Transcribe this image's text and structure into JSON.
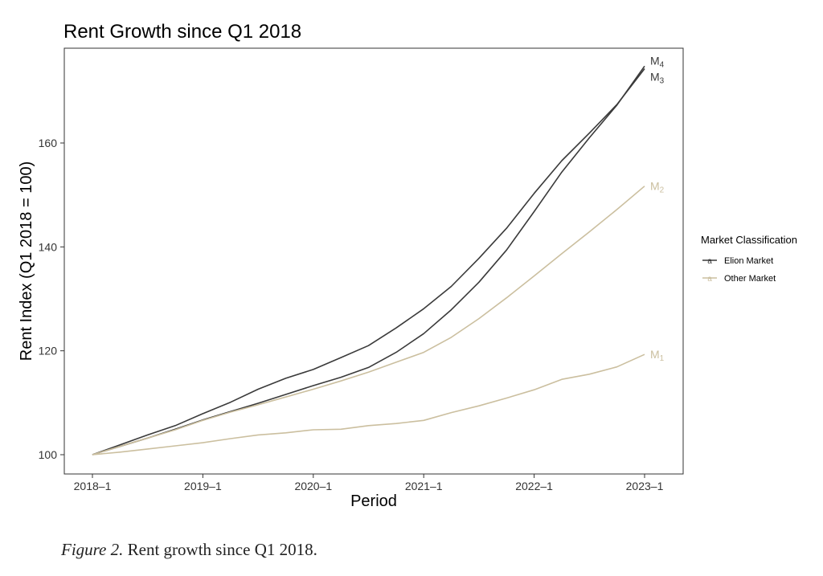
{
  "chart_data": {
    "type": "line",
    "title": "Rent Growth since Q1 2018",
    "xlabel": "Period",
    "ylabel": "Rent Index (Q1 2018 = 100)",
    "x_ticks": [
      "2018–1",
      "2019–1",
      "2020–1",
      "2021–1",
      "2022–1",
      "2023–1"
    ],
    "xlim": [
      0,
      20
    ],
    "ylim": [
      97,
      178
    ],
    "y_ticks": [
      100,
      120,
      140,
      160
    ],
    "grid": false,
    "legend": {
      "title": "Market Classification",
      "placement": "right",
      "entries": [
        {
          "label": "Elion Market",
          "color": "#3a3a3a",
          "key": "a"
        },
        {
          "label": "Other Market",
          "color": "#cbbf9f",
          "key": "a"
        }
      ]
    },
    "series": [
      {
        "label_main": "M",
        "label_sub": "4",
        "class": "Elion Market",
        "color": "#3a3a3a",
        "values": [
          100,
          101.9,
          103.8,
          105.6,
          107.9,
          110.1,
          112.6,
          114.7,
          116.4,
          118.7,
          121,
          124.4,
          128.1,
          132.4,
          137.8,
          143.6,
          150.3,
          156.6,
          161.9,
          167.4,
          174.3
        ]
      },
      {
        "label_main": "M",
        "label_sub": "3",
        "class": "Elion Market",
        "color": "#3a3a3a",
        "values": [
          100,
          101.6,
          103.2,
          104.9,
          106.7,
          108.3,
          109.9,
          111.6,
          113.3,
          114.9,
          116.8,
          119.7,
          123.3,
          127.9,
          133.2,
          139.4,
          146.8,
          154.4,
          161,
          167.3,
          174.8
        ]
      },
      {
        "label_main": "M",
        "label_sub": "2",
        "class": "Other Market",
        "color": "#cbbf9f",
        "values": [
          100,
          101.6,
          103.2,
          104.8,
          106.6,
          108.2,
          109.6,
          111.1,
          112.6,
          114.2,
          115.9,
          117.8,
          119.7,
          122.6,
          126.2,
          130.2,
          134.4,
          138.7,
          142.9,
          147.2,
          151.7
        ]
      },
      {
        "label_main": "M",
        "label_sub": "1",
        "class": "Other Market",
        "color": "#cbbf9f",
        "values": [
          100,
          100.5,
          101.1,
          101.7,
          102.3,
          103.1,
          103.8,
          104.2,
          104.8,
          104.9,
          105.6,
          106,
          106.6,
          108.1,
          109.4,
          110.9,
          112.5,
          114.5,
          115.5,
          116.9,
          119.3
        ]
      }
    ]
  },
  "caption": {
    "figure": "Figure 2.",
    "text": " Rent growth since Q1 2018."
  }
}
